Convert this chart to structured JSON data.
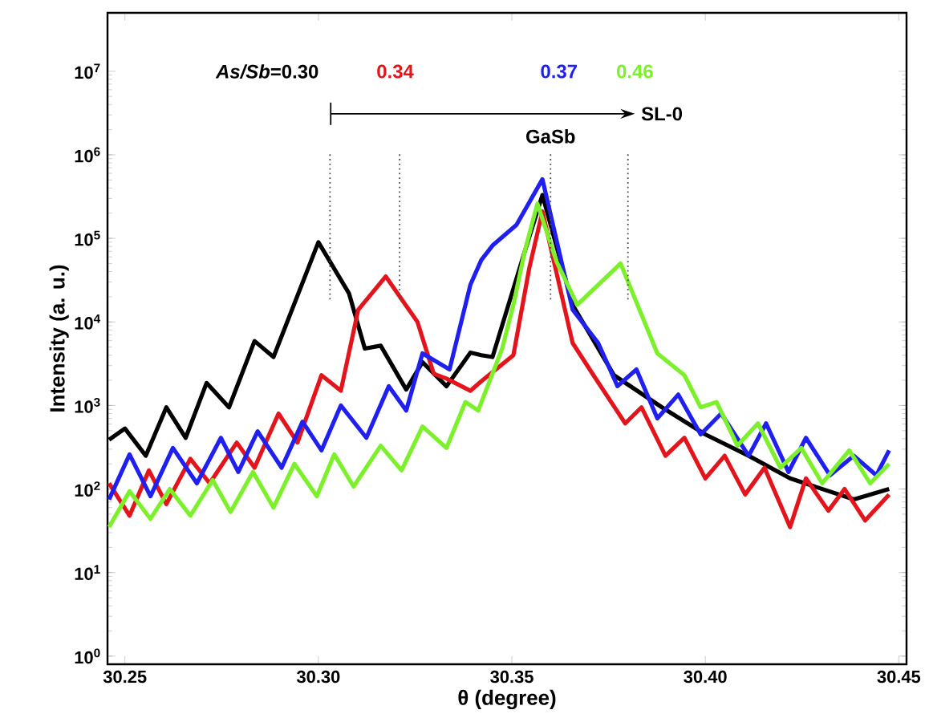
{
  "chart_data": {
    "type": "line",
    "xlabel": "θ (degree)",
    "ylabel": "Intensity (a. u.)",
    "log": "y",
    "xlim": [
      30.2455,
      30.452
    ],
    "ylim": [
      0.8,
      50000000
    ],
    "xticks": [
      30.25,
      {
        "value": 30.3,
        "label": "30.30"
      },
      30.35,
      {
        "value": 30.4,
        "label": "30.40"
      },
      30.45
    ],
    "yticks": [
      {
        "value": 1,
        "label": "10$^{0}$"
      },
      {
        "value": 10,
        "label": "10$^{1}$"
      },
      {
        "value": 100,
        "label": "10$^{2}$"
      },
      {
        "value": 1000,
        "label": "10$^{3}$"
      },
      {
        "value": 10000,
        "label": "10$^{4}$"
      },
      {
        "value": 100000,
        "label": "10$^{5}$"
      },
      {
        "value": 1000000,
        "label": "10$^{6}$"
      },
      {
        "value": 10000000,
        "label": "10$^{7}$"
      }
    ],
    "legend": "top",
    "series": [
      {
        "name": "*As/Sb*=0.30",
        "color": "#000000",
        "x": [
          30.2459,
          30.25,
          30.2554,
          30.2607,
          30.2657,
          30.2711,
          30.2769,
          30.2835,
          30.2884,
          30.3,
          30.3079,
          30.312,
          30.3161,
          30.3227,
          30.3269,
          30.3331,
          30.3393,
          30.3421,
          30.345,
          30.3533,
          30.3579,
          30.3657,
          30.3764,
          30.3888,
          30.4,
          30.4112,
          30.4219,
          30.4384,
          30.4475
        ],
        "values": [
          390,
          530,
          250,
          950,
          410,
          1860,
          950,
          5900,
          3800,
          90000,
          22000,
          4800,
          5200,
          1550,
          3300,
          1700,
          4300,
          4000,
          3800,
          69000,
          330000,
          16000,
          2300,
          950,
          450,
          250,
          134,
          75,
          100
        ]
      },
      {
        "name": "0.34",
        "color": "#e3141c",
        "x": [
          30.2459,
          30.2512,
          30.2562,
          30.2607,
          30.2669,
          30.2719,
          30.2789,
          30.2835,
          30.2897,
          30.2946,
          30.3008,
          30.3058,
          30.3103,
          30.3174,
          30.3256,
          30.3298,
          30.3331,
          30.3393,
          30.3421,
          30.3504,
          30.3545,
          30.3579,
          30.3657,
          30.3711,
          30.3793,
          30.3835,
          30.3897,
          30.3946,
          30.4,
          30.405,
          30.4103,
          30.4153,
          30.4219,
          30.426,
          30.4318,
          30.436,
          30.4413,
          30.4475
        ],
        "values": [
          117,
          48,
          167,
          66,
          230,
          117,
          360,
          180,
          800,
          360,
          2300,
          1500,
          14000,
          35000,
          10000,
          2400,
          2100,
          1500,
          1950,
          4000,
          44000,
          210000,
          5600,
          2300,
          610,
          950,
          250,
          410,
          134,
          250,
          86,
          180,
          35,
          134,
          55,
          100,
          42,
          86
        ]
      },
      {
        "name": "0.37",
        "color": "#1f1ff0",
        "x": [
          30.2459,
          30.2512,
          30.2566,
          30.2624,
          30.2686,
          30.2748,
          30.2793,
          30.2843,
          30.2905,
          30.2959,
          30.3008,
          30.3058,
          30.3124,
          30.3182,
          30.3227,
          30.3269,
          30.3339,
          30.3393,
          30.3421,
          30.345,
          30.35,
          30.3512,
          30.3579,
          30.3657,
          30.3723,
          30.3773,
          30.3822,
          30.3876,
          30.393,
          30.3988,
          30.4041,
          30.4112,
          30.4157,
          30.4215,
          30.426,
          30.4322,
          30.4384,
          30.4442,
          30.4475
        ],
        "values": [
          75,
          260,
          82,
          310,
          117,
          410,
          160,
          490,
          180,
          640,
          290,
          1000,
          410,
          1700,
          870,
          4200,
          2700,
          28000,
          55000,
          82000,
          130000,
          145000,
          510000,
          14000,
          5600,
          1700,
          2700,
          700,
          1350,
          450,
          800,
          250,
          610,
          160,
          410,
          146,
          250,
          146,
          290
        ]
      },
      {
        "name": "0.46",
        "color": "#7cf02a",
        "x": [
          30.2459,
          30.2512,
          30.2566,
          30.2616,
          30.2669,
          30.2727,
          30.2773,
          30.2831,
          30.2884,
          30.2938,
          30.2996,
          30.3041,
          30.3091,
          30.3161,
          30.3215,
          30.3269,
          30.3331,
          30.338,
          30.3413,
          30.3475,
          30.3504,
          30.3533,
          30.3566,
          30.3616,
          30.3669,
          30.3781,
          30.3876,
          30.3946,
          30.3988,
          30.4029,
          30.4083,
          30.4136,
          30.4194,
          30.4248,
          30.4302,
          30.4372,
          30.4426,
          30.4475
        ],
        "values": [
          35,
          94,
          44,
          100,
          48,
          128,
          53,
          160,
          60,
          200,
          82,
          260,
          107,
          330,
          167,
          560,
          310,
          1100,
          870,
          4800,
          16000,
          69000,
          260000,
          52000,
          16000,
          50000,
          4200,
          2300,
          950,
          1100,
          330,
          610,
          180,
          310,
          117,
          290,
          117,
          200
        ]
      }
    ],
    "ref_lines": [
      {
        "axis": "x",
        "value": 30.303,
        "line_style": "dotted"
      },
      {
        "axis": "x",
        "value": 30.321,
        "line_style": "dotted"
      },
      {
        "axis": "x",
        "value": 30.36,
        "line_style": "dotted"
      },
      {
        "axis": "x",
        "value": 30.38,
        "line_style": "dotted"
      }
    ],
    "annotations": [
      "GaSb",
      "SL-0"
    ]
  }
}
